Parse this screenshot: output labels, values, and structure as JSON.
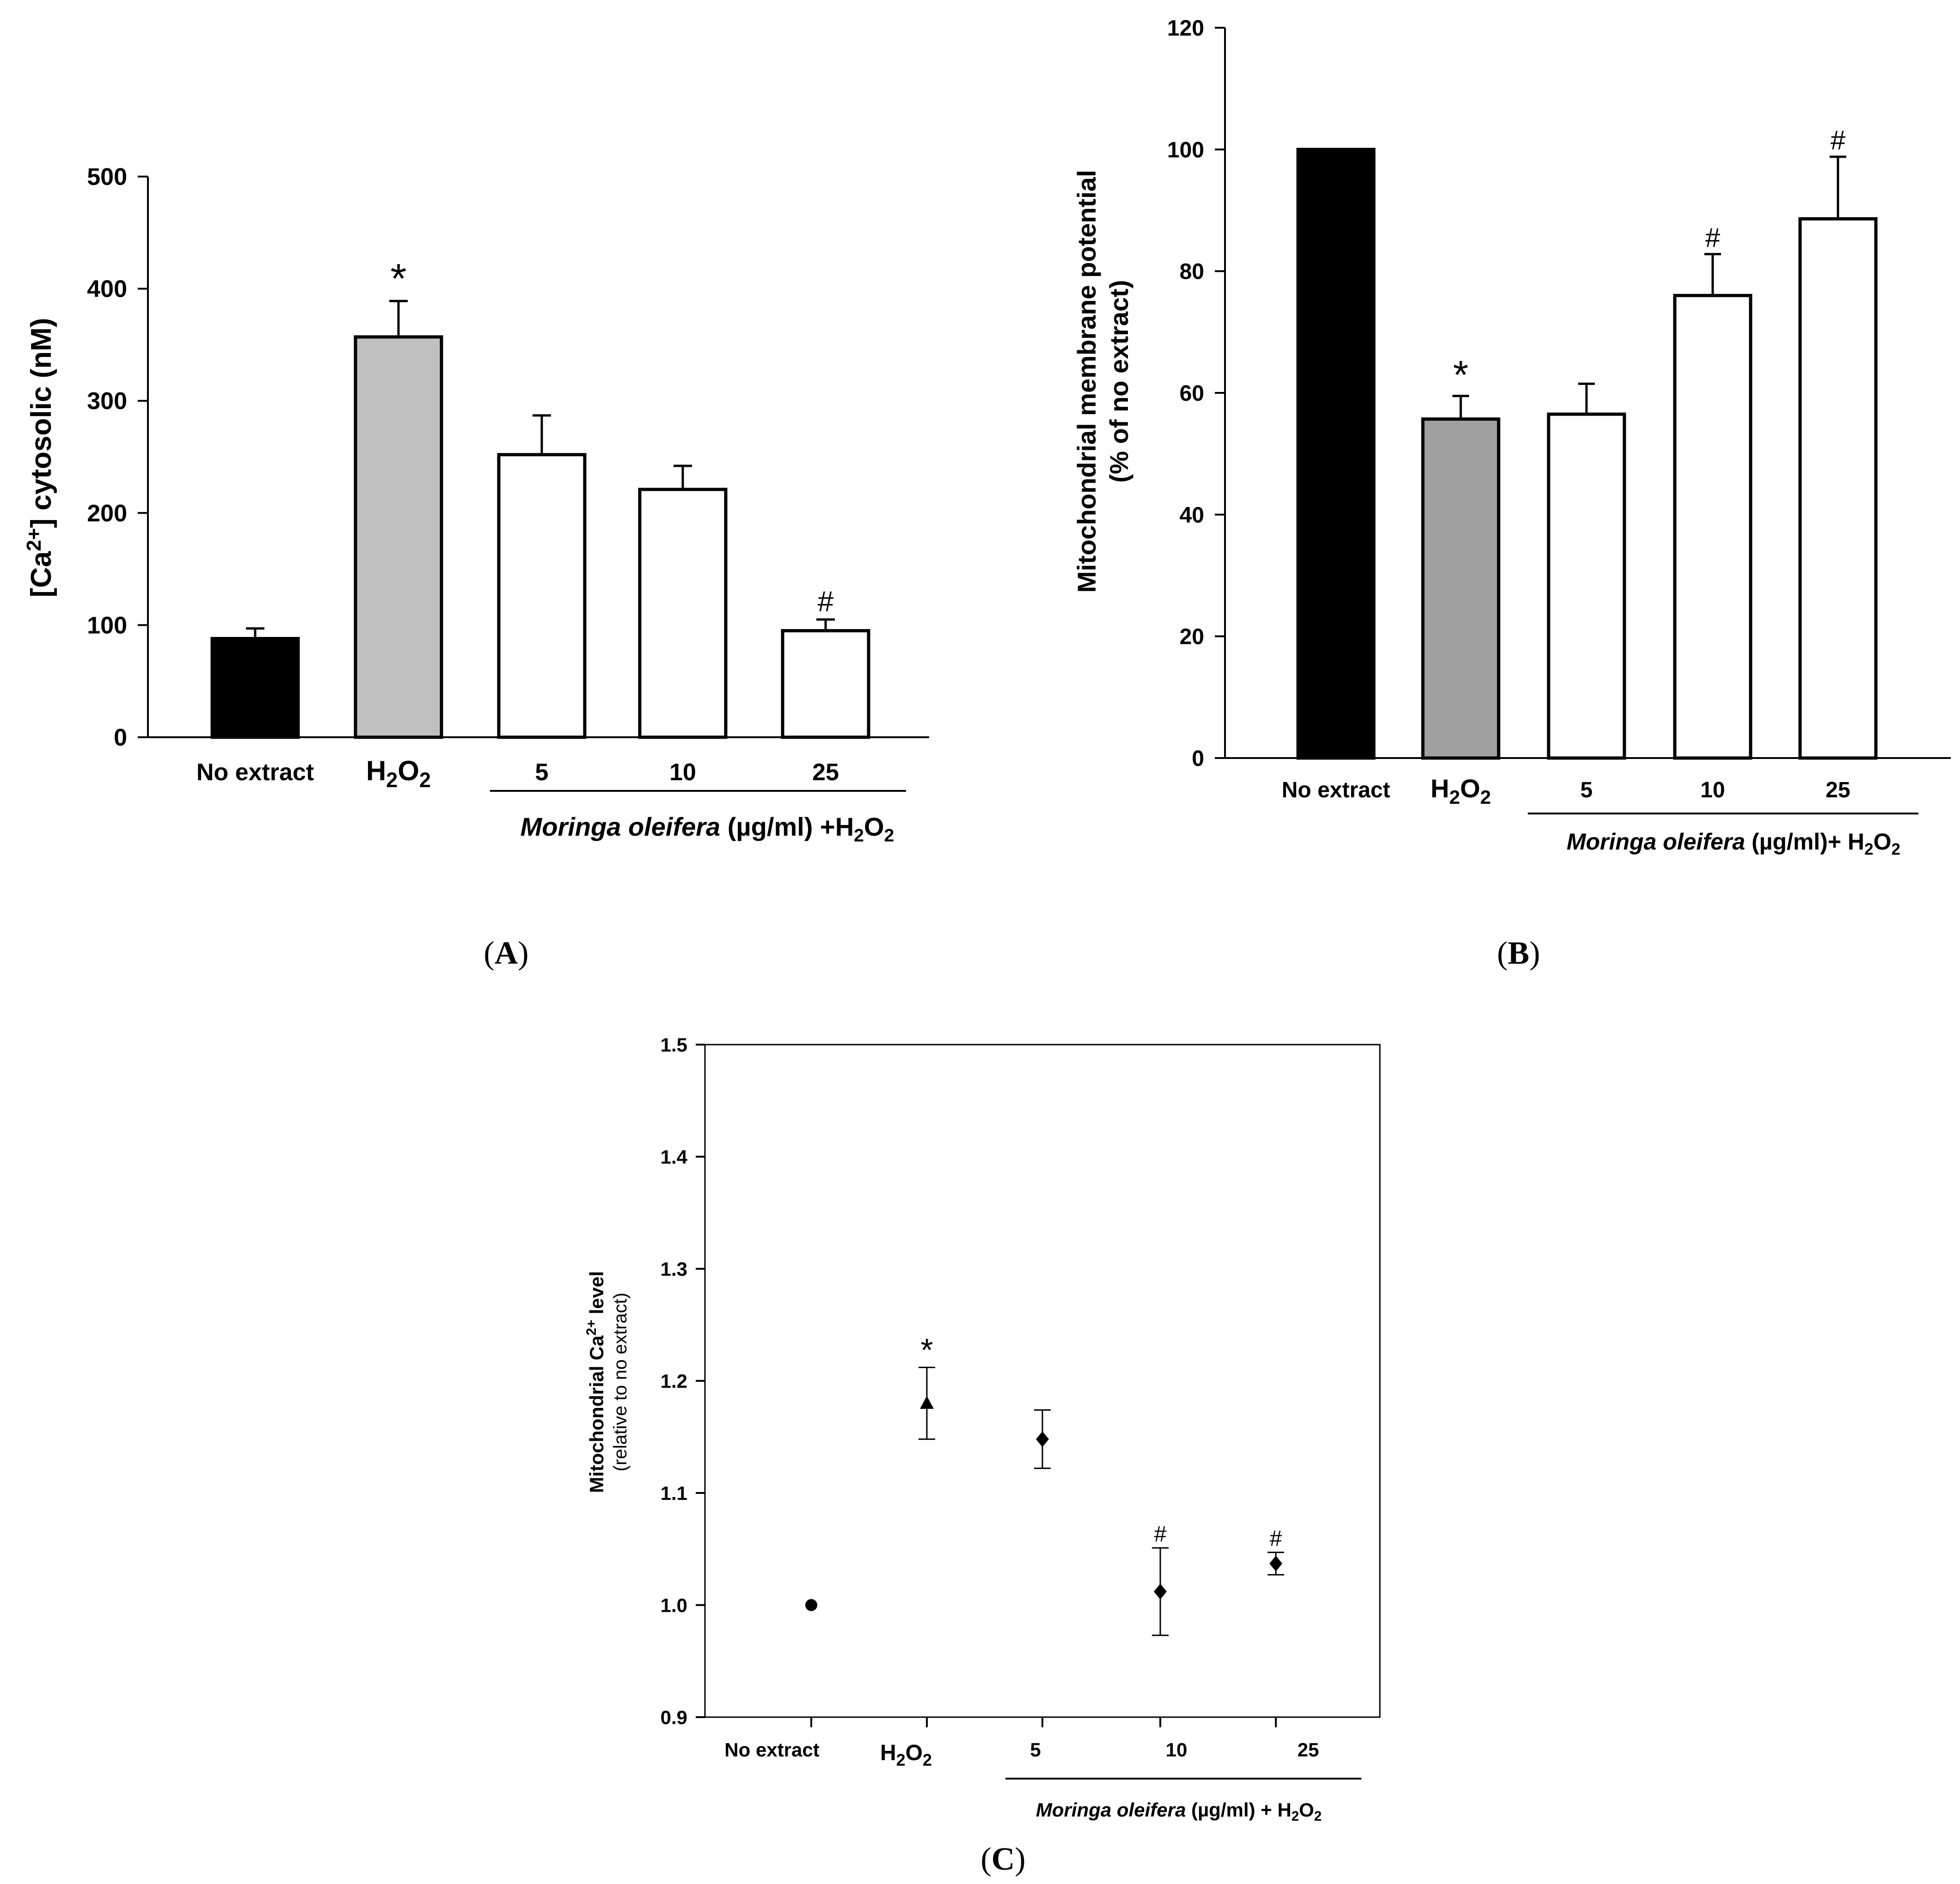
{
  "chart_data": [
    {
      "panel": "(A)",
      "panel_prefix": "(",
      "panel_letter": "A",
      "panel_suffix": ")",
      "type": "bar",
      "ylabel_parts": [
        "[Ca",
        "2+",
        "] cytosolic (nM)"
      ],
      "ylim": [
        0,
        500
      ],
      "yticks": [
        "0",
        "100",
        "200",
        "300",
        "400",
        "500"
      ],
      "categories": [
        "No extract",
        "H2O2",
        "5",
        "10",
        "25"
      ],
      "values": [
        88,
        357,
        252,
        221,
        95
      ],
      "errors": [
        9,
        32,
        35,
        21,
        10
      ],
      "colors": [
        "#000000",
        "#c0c0c0",
        "#ffffff",
        "#ffffff",
        "#ffffff"
      ],
      "significance": [
        "",
        "*",
        "",
        "",
        "#"
      ],
      "h2o2_parts": [
        "H",
        "2",
        "O",
        "2"
      ],
      "group_label_italic": "Moringa oleifera",
      "group_label_rest": " (µg/ml) +H",
      "group_label_sub1": "2",
      "group_label_o": "O",
      "group_label_sub2": "2"
    },
    {
      "panel": "(B)",
      "panel_prefix": "(",
      "panel_letter": "B",
      "panel_suffix": ")",
      "type": "bar",
      "ylabel_line1": "Mitochondrial membrane potential",
      "ylabel_line2": "(% of no extract)",
      "ylim": [
        0,
        120
      ],
      "yticks": [
        "0",
        "20",
        "40",
        "60",
        "80",
        "100",
        "120"
      ],
      "categories": [
        "No extract",
        "H2O2",
        "5",
        "10",
        "25"
      ],
      "values": [
        100,
        55.7,
        56.5,
        76,
        88.6
      ],
      "errors": [
        0,
        3.8,
        5,
        6.8,
        10.2
      ],
      "colors": [
        "#000000",
        "#a0a0a0",
        "#ffffff",
        "#ffffff",
        "#ffffff"
      ],
      "significance": [
        "",
        "*",
        "",
        "#",
        "#"
      ],
      "h2o2_parts": [
        "H",
        "2",
        "O",
        "2"
      ],
      "group_label_italic": "Moringa oleifera",
      "group_label_rest": " (µg/ml)+ H",
      "group_label_sub1": "2",
      "group_label_o": "O",
      "group_label_sub2": "2"
    },
    {
      "panel": "(C)",
      "panel_prefix": "(",
      "panel_letter": "C",
      "panel_suffix": ")",
      "type": "scatter",
      "ylabel_parts": [
        "Mitochondrial Ca",
        "2+",
        " level"
      ],
      "ylabel_line2": "(relative to no extract)",
      "ylim": [
        0.9,
        1.5
      ],
      "yticks": [
        "0.9",
        "1.0",
        "1.1",
        "1.2",
        "1.3",
        "1.4",
        "1.5"
      ],
      "categories": [
        "No extract",
        "H2O2",
        "5",
        "10",
        "25"
      ],
      "values": [
        1.0,
        1.18,
        1.148,
        1.012,
        1.037
      ],
      "errors": [
        0,
        0.032,
        0.026,
        0.039,
        0.01
      ],
      "markers": [
        "circle",
        "triangle",
        "diamond",
        "diamond",
        "diamond"
      ],
      "significance": [
        "",
        "*",
        "",
        "#",
        "#"
      ],
      "h2o2_parts": [
        "H",
        "2",
        "O",
        "2"
      ],
      "group_label_italic": "Moringa oleifera",
      "group_label_rest": " (µg/ml) + H",
      "group_label_sub1": "2",
      "group_label_o": "O",
      "group_label_sub2": "2"
    }
  ]
}
